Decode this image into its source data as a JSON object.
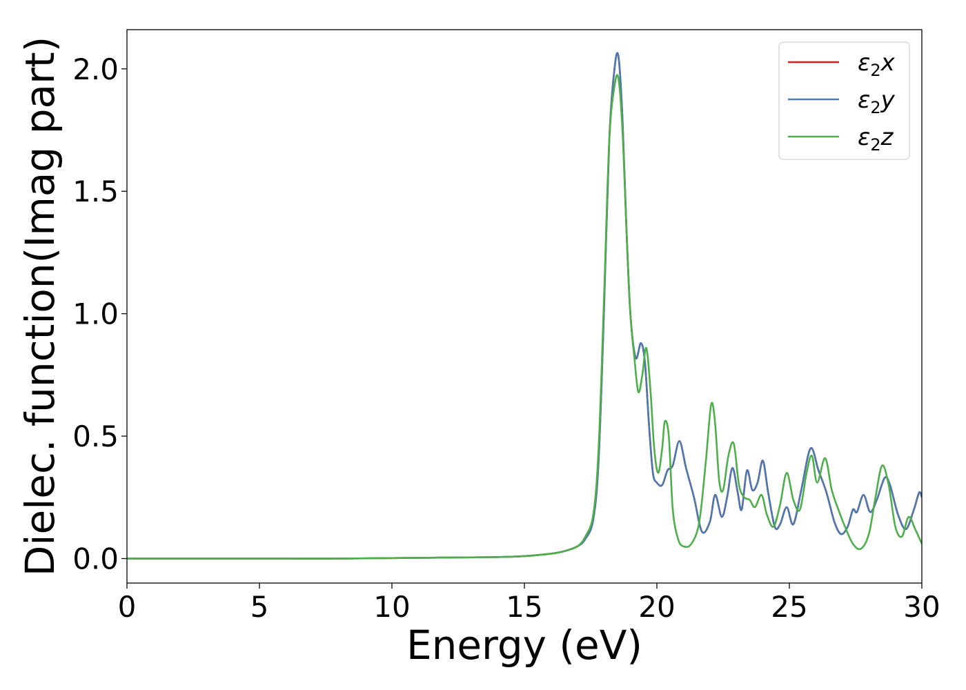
{
  "chart_data": {
    "type": "line",
    "title": "",
    "xlabel": "Energy (eV)",
    "ylabel": "Dielec. function(Imag part)",
    "xlim": [
      0,
      30
    ],
    "ylim": [
      -0.1,
      2.16
    ],
    "xticks": [
      0,
      5,
      10,
      15,
      20,
      25,
      30
    ],
    "xtick_labels": [
      "0",
      "5",
      "10",
      "15",
      "20",
      "25",
      "30"
    ],
    "yticks": [
      0.0,
      0.5,
      1.0,
      1.5,
      2.0
    ],
    "ytick_labels": [
      "0.0",
      "0.5",
      "1.0",
      "1.5",
      "2.0"
    ],
    "grid": false,
    "legend_position": "top-right",
    "series": [
      {
        "name": "ε2x",
        "legend_main": "ε",
        "legend_sub": "2",
        "legend_suffix": "x",
        "color": "#e41a1c",
        "x": [
          0,
          2,
          4,
          6,
          8,
          10,
          12,
          14,
          15,
          16,
          16.5,
          17,
          17.3,
          17.6,
          17.8,
          18.0,
          18.2,
          18.4,
          18.55,
          18.7,
          18.85,
          19.0,
          19.2,
          19.4,
          19.55,
          19.7,
          19.85,
          20.0,
          20.2,
          20.4,
          20.6,
          20.85,
          21.1,
          21.4,
          21.7,
          22.0,
          22.2,
          22.45,
          22.65,
          22.85,
          23.05,
          23.2,
          23.4,
          23.6,
          23.8,
          24.0,
          24.2,
          24.45,
          24.65,
          24.9,
          25.15,
          25.45,
          25.8,
          26.1,
          26.4,
          26.7,
          26.95,
          27.2,
          27.4,
          27.55,
          27.8,
          28.05,
          28.3,
          28.6,
          28.8,
          29.1,
          29.4,
          29.7,
          29.9,
          30.0
        ],
        "y": [
          0.0,
          0.0,
          0.0,
          0.0,
          0.0,
          0.002,
          0.004,
          0.006,
          0.01,
          0.02,
          0.03,
          0.05,
          0.08,
          0.16,
          0.4,
          1.0,
          1.7,
          2.0,
          2.05,
          1.8,
          1.35,
          1.0,
          0.82,
          0.88,
          0.8,
          0.55,
          0.35,
          0.31,
          0.3,
          0.36,
          0.38,
          0.48,
          0.37,
          0.25,
          0.11,
          0.15,
          0.26,
          0.17,
          0.25,
          0.37,
          0.27,
          0.2,
          0.36,
          0.28,
          0.31,
          0.4,
          0.27,
          0.13,
          0.14,
          0.21,
          0.14,
          0.28,
          0.45,
          0.36,
          0.27,
          0.15,
          0.1,
          0.13,
          0.2,
          0.19,
          0.26,
          0.19,
          0.24,
          0.33,
          0.3,
          0.18,
          0.12,
          0.2,
          0.27,
          0.25
        ]
      },
      {
        "name": "ε2y",
        "legend_main": "ε",
        "legend_sub": "2",
        "legend_suffix": "y",
        "color": "#4a79b0",
        "x": [
          0,
          2,
          4,
          6,
          8,
          10,
          12,
          14,
          15,
          16,
          16.5,
          17,
          17.3,
          17.6,
          17.8,
          18.0,
          18.2,
          18.4,
          18.55,
          18.7,
          18.85,
          19.0,
          19.2,
          19.4,
          19.55,
          19.7,
          19.85,
          20.0,
          20.2,
          20.4,
          20.6,
          20.85,
          21.1,
          21.4,
          21.7,
          22.0,
          22.2,
          22.45,
          22.65,
          22.85,
          23.05,
          23.2,
          23.4,
          23.6,
          23.8,
          24.0,
          24.2,
          24.45,
          24.65,
          24.9,
          25.15,
          25.45,
          25.8,
          26.1,
          26.4,
          26.7,
          26.95,
          27.2,
          27.4,
          27.55,
          27.8,
          28.05,
          28.3,
          28.6,
          28.8,
          29.1,
          29.4,
          29.7,
          29.9,
          30.0
        ],
        "y": [
          0.0,
          0.0,
          0.0,
          0.0,
          0.0,
          0.002,
          0.004,
          0.006,
          0.01,
          0.02,
          0.03,
          0.05,
          0.08,
          0.16,
          0.4,
          1.0,
          1.7,
          2.0,
          2.05,
          1.8,
          1.35,
          1.0,
          0.82,
          0.88,
          0.8,
          0.55,
          0.35,
          0.31,
          0.3,
          0.36,
          0.38,
          0.48,
          0.37,
          0.25,
          0.11,
          0.15,
          0.26,
          0.17,
          0.25,
          0.37,
          0.27,
          0.2,
          0.36,
          0.28,
          0.31,
          0.4,
          0.27,
          0.13,
          0.14,
          0.21,
          0.14,
          0.28,
          0.45,
          0.36,
          0.27,
          0.15,
          0.1,
          0.13,
          0.2,
          0.19,
          0.26,
          0.19,
          0.24,
          0.33,
          0.3,
          0.18,
          0.12,
          0.2,
          0.27,
          0.25
        ]
      },
      {
        "name": "ε2z",
        "legend_main": "ε",
        "legend_sub": "2",
        "legend_suffix": "z",
        "color": "#4daf4a",
        "x": [
          0,
          2,
          4,
          6,
          8,
          10,
          12,
          14,
          15,
          16,
          16.5,
          17,
          17.3,
          17.6,
          17.8,
          18.0,
          18.2,
          18.4,
          18.55,
          18.7,
          18.85,
          19.0,
          19.15,
          19.3,
          19.45,
          19.6,
          19.75,
          19.9,
          20.05,
          20.2,
          20.3,
          20.45,
          20.6,
          20.8,
          21.0,
          21.3,
          21.6,
          21.85,
          22.05,
          22.2,
          22.35,
          22.5,
          22.7,
          22.9,
          23.1,
          23.3,
          23.5,
          23.7,
          23.95,
          24.15,
          24.4,
          24.65,
          24.9,
          25.15,
          25.4,
          25.65,
          25.85,
          26.05,
          26.35,
          26.6,
          26.85,
          27.1,
          27.4,
          27.7,
          28.0,
          28.25,
          28.5,
          28.75,
          29.0,
          29.25,
          29.5,
          29.75,
          30.0
        ],
        "y": [
          0.0,
          0.0,
          0.0,
          0.0,
          0.0,
          0.002,
          0.004,
          0.006,
          0.01,
          0.02,
          0.03,
          0.05,
          0.09,
          0.18,
          0.45,
          1.05,
          1.7,
          1.93,
          1.96,
          1.75,
          1.35,
          1.0,
          0.82,
          0.68,
          0.75,
          0.86,
          0.7,
          0.45,
          0.35,
          0.45,
          0.56,
          0.5,
          0.2,
          0.08,
          0.05,
          0.06,
          0.15,
          0.4,
          0.63,
          0.55,
          0.32,
          0.28,
          0.42,
          0.47,
          0.3,
          0.25,
          0.24,
          0.21,
          0.26,
          0.18,
          0.13,
          0.22,
          0.35,
          0.24,
          0.2,
          0.35,
          0.42,
          0.31,
          0.41,
          0.28,
          0.2,
          0.13,
          0.06,
          0.04,
          0.1,
          0.25,
          0.38,
          0.3,
          0.13,
          0.09,
          0.17,
          0.12,
          0.06
        ]
      }
    ]
  }
}
